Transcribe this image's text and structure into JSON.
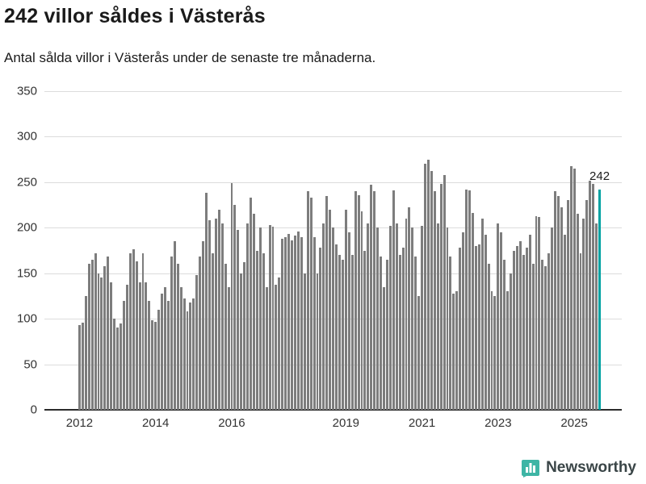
{
  "header": {
    "title": "242 villor såldes i Västerås",
    "subtitle": "Antal sålda villor i Västerås under de senaste tre månaderna."
  },
  "chart_data": {
    "type": "bar",
    "title": "242 villor såldes i Västerås",
    "subtitle": "Antal sålda villor i Västerås under de senaste tre månaderna.",
    "xlabel": "",
    "ylabel": "",
    "ylim": [
      0,
      350
    ],
    "yticks": [
      0,
      50,
      100,
      150,
      200,
      250,
      300,
      350
    ],
    "grid": true,
    "start_period": "2012-01",
    "frequency": "monthly",
    "bar_color": "#7d7d7d",
    "highlight_color": "#00a2a2",
    "highlight_last": true,
    "last_value_label": "242",
    "xticks": [
      {
        "label": "2012",
        "index": 0
      },
      {
        "label": "2014",
        "index": 24
      },
      {
        "label": "2016",
        "index": 48
      },
      {
        "label": "2019",
        "index": 84
      },
      {
        "label": "2021",
        "index": 108
      },
      {
        "label": "2023",
        "index": 132
      },
      {
        "label": "2025",
        "index": 156
      }
    ],
    "values": [
      93,
      96,
      125,
      160,
      165,
      172,
      150,
      145,
      158,
      168,
      140,
      100,
      90,
      95,
      120,
      137,
      172,
      176,
      163,
      140,
      172,
      140,
      120,
      98,
      97,
      110,
      128,
      135,
      120,
      168,
      185,
      160,
      135,
      122,
      108,
      118,
      122,
      148,
      168,
      185,
      238,
      208,
      172,
      210,
      220,
      205,
      160,
      135,
      249,
      225,
      198,
      150,
      162,
      205,
      233,
      215,
      175,
      200,
      172,
      135,
      203,
      201,
      137,
      145,
      188,
      190,
      193,
      186,
      191,
      196,
      190,
      150,
      240,
      233,
      190,
      150,
      178,
      205,
      235,
      220,
      200,
      182,
      170,
      165,
      220,
      195,
      170,
      240,
      236,
      218,
      175,
      205,
      247,
      240,
      200,
      168,
      135,
      165,
      202,
      241,
      205,
      170,
      178,
      210,
      222,
      200,
      168,
      125,
      202,
      270,
      275,
      262,
      240,
      205,
      248,
      258,
      200,
      168,
      128,
      130,
      178,
      195,
      242,
      241,
      216,
      180,
      182,
      210,
      192,
      160,
      130,
      125,
      205,
      195,
      165,
      130,
      150,
      175,
      180,
      185,
      170,
      178,
      192,
      160,
      213,
      212,
      165,
      158,
      172,
      200,
      240,
      235,
      222,
      192,
      230,
      268,
      265,
      215,
      172,
      210,
      230,
      252,
      248,
      205,
      242
    ]
  },
  "footer": {
    "brand": "Newsworthy",
    "logo_color": "#3eb5a5"
  }
}
